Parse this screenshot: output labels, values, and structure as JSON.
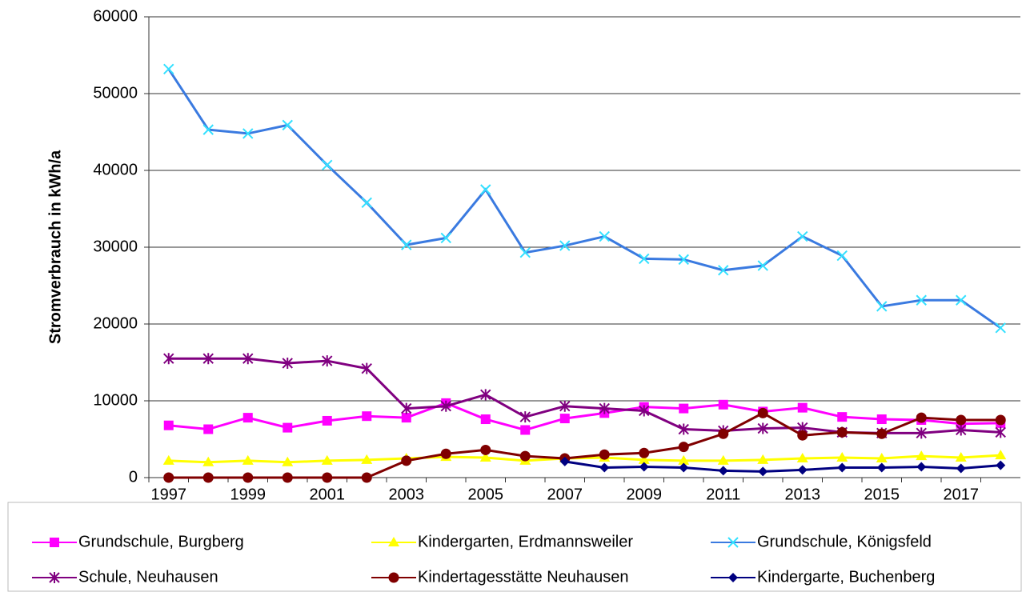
{
  "chart_data": {
    "type": "line",
    "y_label": "Stromverbrauch in kWh/a",
    "categories": [
      "1997",
      null,
      "1999",
      null,
      "2001",
      null,
      "2003",
      null,
      "2005",
      null,
      "2007",
      null,
      "2009",
      null,
      "2011",
      null,
      "2013",
      null,
      "2015",
      null,
      "2017",
      null
    ],
    "ylim": [
      0,
      60000
    ],
    "yticks": [
      0,
      10000,
      20000,
      30000,
      40000,
      50000,
      60000
    ],
    "grid": true,
    "legend": "bottom",
    "series": [
      {
        "name": "Grundschule, Burgberg",
        "color": "#ff00ff",
        "marker": "square",
        "values": [
          6800,
          6300,
          7800,
          6500,
          7400,
          8000,
          7800,
          9700,
          7600,
          6200,
          7700,
          8400,
          9200,
          9000,
          9500,
          8600,
          9100,
          7900,
          7600,
          7500,
          7000,
          7100
        ]
      },
      {
        "name": "Kindergarten, Erdmannsweiler",
        "color": "#ffff00",
        "marker": "triangle",
        "values": [
          2200,
          2000,
          2200,
          2000,
          2200,
          2300,
          2500,
          2700,
          2600,
          2200,
          2500,
          2600,
          2300,
          2200,
          2200,
          2300,
          2500,
          2600,
          2500,
          2800,
          2600,
          2900
        ]
      },
      {
        "name": "Grundschule, Königsfeld",
        "color": "#3a7ae0",
        "marker_color": "#33e0ff",
        "marker": "x",
        "values": [
          53200,
          45300,
          44800,
          45900,
          40700,
          35800,
          30300,
          31200,
          37500,
          29300,
          30200,
          31400,
          28500,
          28400,
          27000,
          27600,
          31400,
          28900,
          22300,
          23100,
          23100,
          19500
        ]
      },
      {
        "name": "Schule, Neuhausen",
        "color": "#800080",
        "marker": "star",
        "values": [
          15500,
          15500,
          15500,
          14900,
          15200,
          14200,
          9000,
          9300,
          10800,
          7900,
          9300,
          9000,
          8700,
          6300,
          6100,
          6400,
          6500,
          5900,
          5800,
          5800,
          6200,
          5900
        ]
      },
      {
        "name": "Kindertagesstätte Neuhausen",
        "color": "#800000",
        "marker": "circle",
        "values": [
          0,
          0,
          0,
          0,
          0,
          0,
          2200,
          3100,
          3600,
          2800,
          2500,
          3000,
          3200,
          4000,
          5700,
          8400,
          5500,
          5900,
          5700,
          7800,
          7500,
          7500
        ]
      },
      {
        "name": "Kindergarte, Buchenberg",
        "color": "#000080",
        "marker": "diamond",
        "values": [
          null,
          null,
          null,
          null,
          null,
          null,
          null,
          null,
          null,
          null,
          2100,
          1300,
          1400,
          1300,
          900,
          800,
          1000,
          1300,
          1300,
          1400,
          1200,
          1600
        ]
      }
    ]
  }
}
